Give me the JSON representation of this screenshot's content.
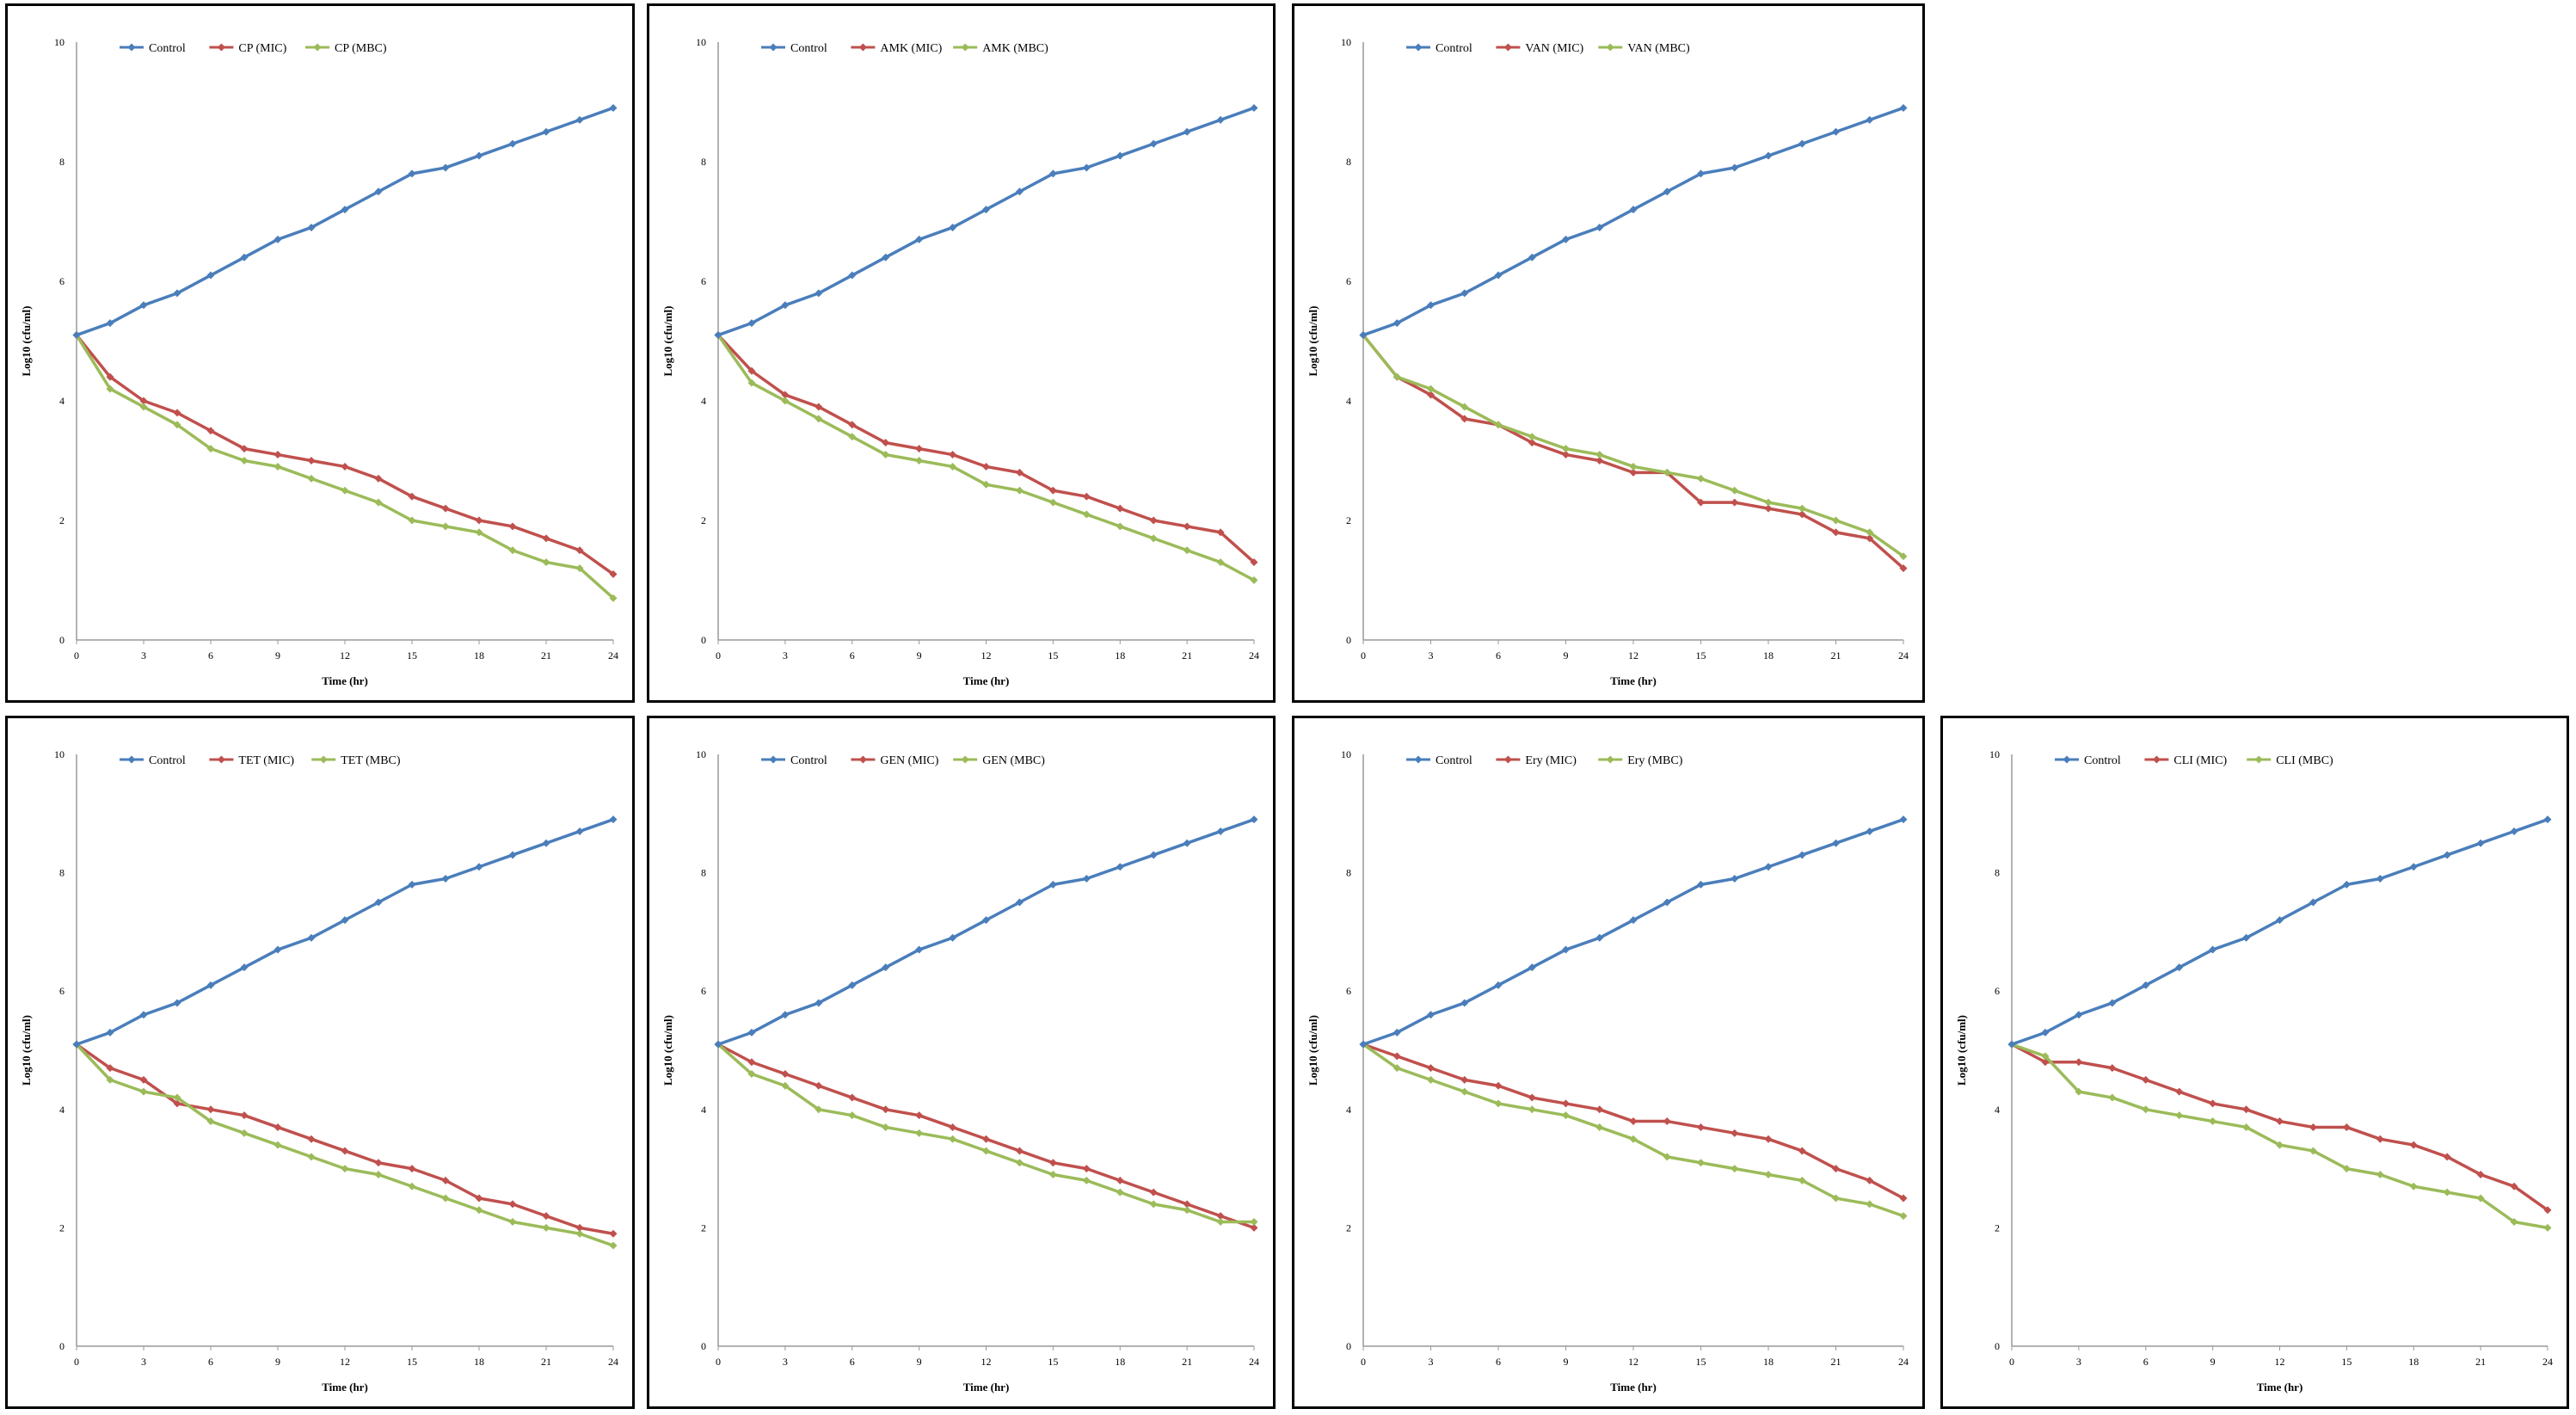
{
  "chart_data": [
    {
      "type": "line",
      "ylabel": "Log10 (cfu/ml)",
      "xlabel": "Time (hr)",
      "xlim": [
        0,
        24
      ],
      "ylim": [
        0,
        10
      ],
      "xticks": [
        0,
        3,
        6,
        9,
        12,
        15,
        18,
        21,
        24
      ],
      "yticks": [
        0,
        2,
        4,
        6,
        8,
        10
      ],
      "x": [
        0,
        1.5,
        3,
        4.5,
        6,
        7.5,
        9,
        10.5,
        12,
        13.5,
        15,
        16.5,
        18,
        19.5,
        21,
        22.5,
        24
      ],
      "series": [
        {
          "name": "Control",
          "color": "#4a7ebb",
          "values": [
            5.1,
            5.3,
            5.6,
            5.8,
            6.1,
            6.4,
            6.7,
            6.9,
            7.2,
            7.5,
            7.8,
            7.9,
            8.1,
            8.3,
            8.5,
            8.7,
            8.9
          ]
        },
        {
          "name": "CP (MIC)",
          "color": "#c0504d",
          "values": [
            5.1,
            4.4,
            4.0,
            3.8,
            3.5,
            3.2,
            3.1,
            3.0,
            2.9,
            2.7,
            2.4,
            2.2,
            2.0,
            1.9,
            1.7,
            1.5,
            1.1
          ]
        },
        {
          "name": "CP (MBC)",
          "color": "#9bbb59",
          "values": [
            5.1,
            4.2,
            3.9,
            3.6,
            3.2,
            3.0,
            2.9,
            2.7,
            2.5,
            2.3,
            2.0,
            1.9,
            1.8,
            1.5,
            1.3,
            1.2,
            0.7
          ]
        }
      ]
    },
    {
      "type": "line",
      "ylabel": "Log10 (cfu/ml)",
      "xlabel": "Time (hr)",
      "xlim": [
        0,
        24
      ],
      "ylim": [
        0,
        10
      ],
      "xticks": [
        0,
        3,
        6,
        9,
        12,
        15,
        18,
        21,
        24
      ],
      "yticks": [
        0,
        2,
        4,
        6,
        8,
        10
      ],
      "x": [
        0,
        1.5,
        3,
        4.5,
        6,
        7.5,
        9,
        10.5,
        12,
        13.5,
        15,
        16.5,
        18,
        19.5,
        21,
        22.5,
        24
      ],
      "series": [
        {
          "name": "Control",
          "color": "#4a7ebb",
          "values": [
            5.1,
            5.3,
            5.6,
            5.8,
            6.1,
            6.4,
            6.7,
            6.9,
            7.2,
            7.5,
            7.8,
            7.9,
            8.1,
            8.3,
            8.5,
            8.7,
            8.9
          ]
        },
        {
          "name": "AMK (MIC)",
          "color": "#c0504d",
          "values": [
            5.1,
            4.5,
            4.1,
            3.9,
            3.6,
            3.3,
            3.2,
            3.1,
            2.9,
            2.8,
            2.5,
            2.4,
            2.2,
            2.0,
            1.9,
            1.8,
            1.3
          ]
        },
        {
          "name": "AMK (MBC)",
          "color": "#9bbb59",
          "values": [
            5.1,
            4.3,
            4.0,
            3.7,
            3.4,
            3.1,
            3.0,
            2.9,
            2.6,
            2.5,
            2.3,
            2.1,
            1.9,
            1.7,
            1.5,
            1.3,
            1.0
          ]
        }
      ]
    },
    {
      "type": "line",
      "ylabel": "Log10 (cfu/ml)",
      "xlabel": "Time (hr)",
      "xlim": [
        0,
        24
      ],
      "ylim": [
        0,
        10
      ],
      "xticks": [
        0,
        3,
        6,
        9,
        12,
        15,
        18,
        21,
        24
      ],
      "yticks": [
        0,
        2,
        4,
        6,
        8,
        10
      ],
      "x": [
        0,
        1.5,
        3,
        4.5,
        6,
        7.5,
        9,
        10.5,
        12,
        13.5,
        15,
        16.5,
        18,
        19.5,
        21,
        22.5,
        24
      ],
      "series": [
        {
          "name": "Control",
          "color": "#4a7ebb",
          "values": [
            5.1,
            5.3,
            5.6,
            5.8,
            6.1,
            6.4,
            6.7,
            6.9,
            7.2,
            7.5,
            7.8,
            7.9,
            8.1,
            8.3,
            8.5,
            8.7,
            8.9
          ]
        },
        {
          "name": "VAN (MIC)",
          "color": "#c0504d",
          "values": [
            5.1,
            4.4,
            4.1,
            3.7,
            3.6,
            3.3,
            3.1,
            3.0,
            2.8,
            2.8,
            2.3,
            2.3,
            2.2,
            2.1,
            1.8,
            1.7,
            1.2
          ]
        },
        {
          "name": "VAN (MBC)",
          "color": "#9bbb59",
          "values": [
            5.1,
            4.4,
            4.2,
            3.9,
            3.6,
            3.4,
            3.2,
            3.1,
            2.9,
            2.8,
            2.7,
            2.5,
            2.3,
            2.2,
            2.0,
            1.8,
            1.4
          ]
        }
      ]
    },
    {
      "type": "line",
      "ylabel": "Log10 (cfu/ml)",
      "xlabel": "Time (hr)",
      "xlim": [
        0,
        24
      ],
      "ylim": [
        0,
        10
      ],
      "xticks": [
        0,
        3,
        6,
        9,
        12,
        15,
        18,
        21,
        24
      ],
      "yticks": [
        0,
        2,
        4,
        6,
        8,
        10
      ],
      "x": [
        0,
        1.5,
        3,
        4.5,
        6,
        7.5,
        9,
        10.5,
        12,
        13.5,
        15,
        16.5,
        18,
        19.5,
        21,
        22.5,
        24
      ],
      "series": [
        {
          "name": "Control",
          "color": "#4a7ebb",
          "values": [
            5.1,
            5.3,
            5.6,
            5.8,
            6.1,
            6.4,
            6.7,
            6.9,
            7.2,
            7.5,
            7.8,
            7.9,
            8.1,
            8.3,
            8.5,
            8.7,
            8.9
          ]
        },
        {
          "name": "TET (MIC)",
          "color": "#c0504d",
          "values": [
            5.1,
            4.7,
            4.5,
            4.1,
            4.0,
            3.9,
            3.7,
            3.5,
            3.3,
            3.1,
            3.0,
            2.8,
            2.5,
            2.4,
            2.2,
            2.0,
            1.9
          ]
        },
        {
          "name": "TET (MBC)",
          "color": "#9bbb59",
          "values": [
            5.1,
            4.5,
            4.3,
            4.2,
            3.8,
            3.6,
            3.4,
            3.2,
            3.0,
            2.9,
            2.7,
            2.5,
            2.3,
            2.1,
            2.0,
            1.9,
            1.7
          ]
        }
      ]
    },
    {
      "type": "line",
      "ylabel": "Log10 (cfu/ml)",
      "xlabel": "Time (hr)",
      "xlim": [
        0,
        24
      ],
      "ylim": [
        0,
        10
      ],
      "xticks": [
        0,
        3,
        6,
        9,
        12,
        15,
        18,
        21,
        24
      ],
      "yticks": [
        0,
        2,
        4,
        6,
        8,
        10
      ],
      "x": [
        0,
        1.5,
        3,
        4.5,
        6,
        7.5,
        9,
        10.5,
        12,
        13.5,
        15,
        16.5,
        18,
        19.5,
        21,
        22.5,
        24
      ],
      "series": [
        {
          "name": "Control",
          "color": "#4a7ebb",
          "values": [
            5.1,
            5.3,
            5.6,
            5.8,
            6.1,
            6.4,
            6.7,
            6.9,
            7.2,
            7.5,
            7.8,
            7.9,
            8.1,
            8.3,
            8.5,
            8.7,
            8.9
          ]
        },
        {
          "name": "GEN (MIC)",
          "color": "#c0504d",
          "values": [
            5.1,
            4.8,
            4.6,
            4.4,
            4.2,
            4.0,
            3.9,
            3.7,
            3.5,
            3.3,
            3.1,
            3.0,
            2.8,
            2.6,
            2.4,
            2.2,
            2.0
          ]
        },
        {
          "name": "GEN (MBC)",
          "color": "#9bbb59",
          "values": [
            5.1,
            4.6,
            4.4,
            4.0,
            3.9,
            3.7,
            3.6,
            3.5,
            3.3,
            3.1,
            2.9,
            2.8,
            2.6,
            2.4,
            2.3,
            2.1,
            2.1
          ]
        }
      ]
    },
    {
      "type": "line",
      "ylabel": "Log10 (cfu/ml)",
      "xlabel": "Time (hr)",
      "xlim": [
        0,
        24
      ],
      "ylim": [
        0,
        10
      ],
      "xticks": [
        0,
        3,
        6,
        9,
        12,
        15,
        18,
        21,
        24
      ],
      "yticks": [
        0,
        2,
        4,
        6,
        8,
        10
      ],
      "x": [
        0,
        1.5,
        3,
        4.5,
        6,
        7.5,
        9,
        10.5,
        12,
        13.5,
        15,
        16.5,
        18,
        19.5,
        21,
        22.5,
        24
      ],
      "series": [
        {
          "name": "Control",
          "color": "#4a7ebb",
          "values": [
            5.1,
            5.3,
            5.6,
            5.8,
            6.1,
            6.4,
            6.7,
            6.9,
            7.2,
            7.5,
            7.8,
            7.9,
            8.1,
            8.3,
            8.5,
            8.7,
            8.9
          ]
        },
        {
          "name": "Ery (MIC)",
          "color": "#c0504d",
          "values": [
            5.1,
            4.9,
            4.7,
            4.5,
            4.4,
            4.2,
            4.1,
            4.0,
            3.8,
            3.8,
            3.7,
            3.6,
            3.5,
            3.3,
            3.0,
            2.8,
            2.5
          ]
        },
        {
          "name": "Ery (MBC)",
          "color": "#9bbb59",
          "values": [
            5.1,
            4.7,
            4.5,
            4.3,
            4.1,
            4.0,
            3.9,
            3.7,
            3.5,
            3.2,
            3.1,
            3.0,
            2.9,
            2.8,
            2.5,
            2.4,
            2.2
          ]
        }
      ]
    },
    {
      "type": "line",
      "ylabel": "Log10 (cfu/ml)",
      "xlabel": "Time (hr)",
      "xlim": [
        0,
        24
      ],
      "ylim": [
        0,
        10
      ],
      "xticks": [
        0,
        3,
        6,
        9,
        12,
        15,
        18,
        21,
        24
      ],
      "yticks": [
        0,
        2,
        4,
        6,
        8,
        10
      ],
      "x": [
        0,
        1.5,
        3,
        4.5,
        6,
        7.5,
        9,
        10.5,
        12,
        13.5,
        15,
        16.5,
        18,
        19.5,
        21,
        22.5,
        24
      ],
      "series": [
        {
          "name": "Control",
          "color": "#4a7ebb",
          "values": [
            5.1,
            5.3,
            5.6,
            5.8,
            6.1,
            6.4,
            6.7,
            6.9,
            7.2,
            7.5,
            7.8,
            7.9,
            8.1,
            8.3,
            8.5,
            8.7,
            8.9
          ]
        },
        {
          "name": "CLI (MIC)",
          "color": "#c0504d",
          "values": [
            5.1,
            4.8,
            4.8,
            4.7,
            4.5,
            4.3,
            4.1,
            4.0,
            3.8,
            3.7,
            3.7,
            3.5,
            3.4,
            3.2,
            2.9,
            2.7,
            2.3
          ]
        },
        {
          "name": "CLI (MBC)",
          "color": "#9bbb59",
          "values": [
            5.1,
            4.9,
            4.3,
            4.2,
            4.0,
            3.9,
            3.8,
            3.7,
            3.4,
            3.3,
            3.0,
            2.9,
            2.7,
            2.6,
            2.5,
            2.1,
            2.0
          ]
        }
      ]
    }
  ]
}
